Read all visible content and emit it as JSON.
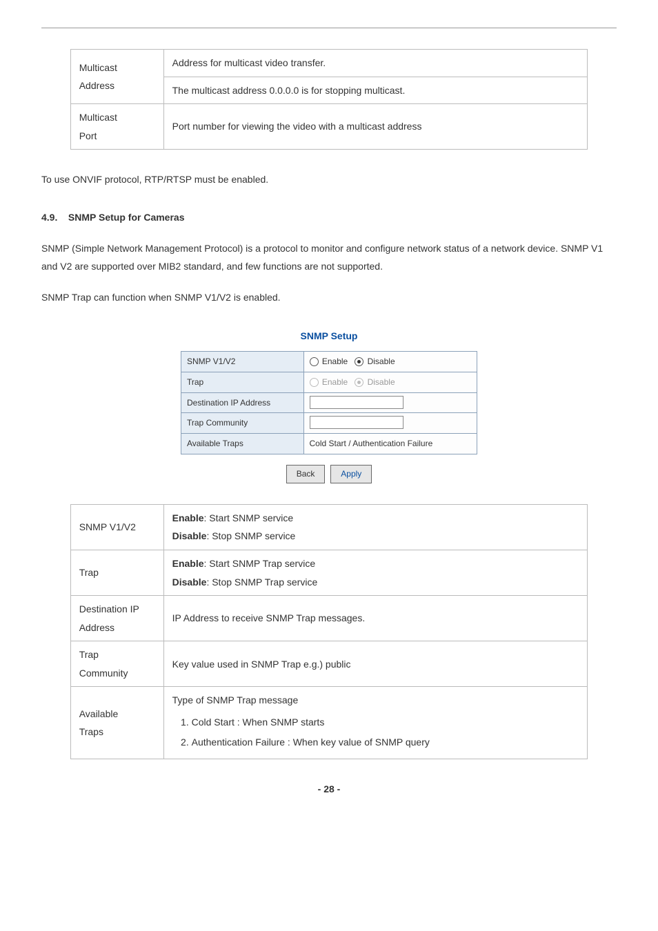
{
  "top_table": {
    "rows": [
      {
        "label": "Multicast Address",
        "desc": "Address for multicast video transfer.\nThe multicast address 0.0.0.0 is for stopping multicast."
      },
      {
        "label": "Multicast Port",
        "desc": "Port number for viewing the video with a multicast address"
      }
    ]
  },
  "p_onvif": "To use ONVIF protocol, RTP/RTSP must be enabled.",
  "section_no": "4.9.",
  "section_title": "SNMP Setup for Cameras",
  "p_snmp1": "SNMP (Simple Network Management Protocol) is a protocol to monitor and configure network status of a network device. SNMP V1 and V2 are supported over MIB2 standard, and few functions are not supported.",
  "p_snmp2": "SNMP Trap can function when SNMP V1/V2 is enabled.",
  "snmp_setup": {
    "title": "SNMP Setup",
    "rows": {
      "r1_label": "SNMP V1/V2",
      "r1_enable": "Enable",
      "r1_disable": "Disable",
      "r2_label": "Trap",
      "r2_enable": "Enable",
      "r2_disable": "Disable",
      "r3_label": "Destination IP Address",
      "r4_label": "Trap Community",
      "r5_label": "Available Traps",
      "r5_value": "Cold Start / Authentication Failure"
    },
    "btn_back": "Back",
    "btn_apply": "Apply"
  },
  "desc_table": {
    "r1_label": "SNMP V1/V2",
    "r1_line1_b": "Enable",
    "r1_line1_t": ": Start SNMP service",
    "r1_line2_b": "Disable",
    "r1_line2_t": ": Stop SNMP service",
    "r2_label": "Trap",
    "r2_line1_b": "Enable",
    "r2_line1_t": ": Start SNMP Trap service",
    "r2_line2_b": "Disable",
    "r2_line2_t": ": Stop SNMP Trap service",
    "r3_label": "Destination IP Address",
    "r3_desc": "IP Address to receive SNMP Trap messages.",
    "r4_label": "Trap Community",
    "r4_desc": "Key value used in SNMP Trap e.g.) public",
    "r5_label": "Available Traps",
    "r5_line1": "Type of SNMP Trap message",
    "r5_li1": "Cold Start : When SNMP starts",
    "r5_li2": "Authentication Failure : When key value of SNMP query"
  },
  "page_number": "- 28 -"
}
